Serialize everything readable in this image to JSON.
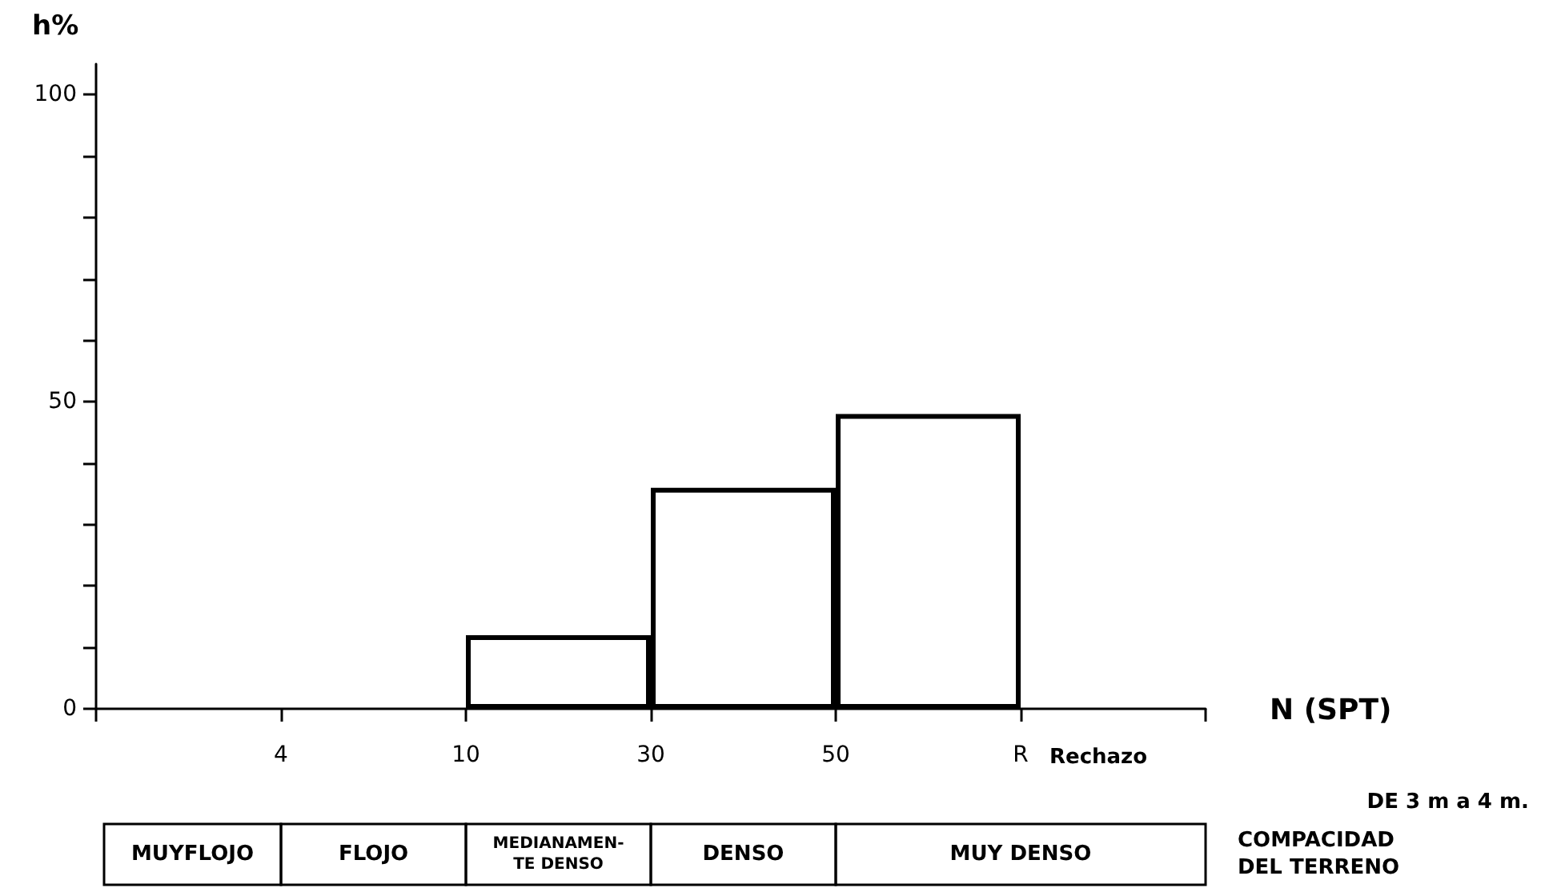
{
  "chart_data": {
    "type": "bar",
    "xlabel": "N (SPT)",
    "ylabel": "h%",
    "categories": [
      null,
      null,
      null,
      null,
      null,
      null
    ],
    "values": [
      null,
      null,
      12,
      36,
      48,
      null
    ],
    "color": "#000000",
    "ylim": [
      0,
      105
    ],
    "yticks": [
      0,
      {
        "value": 10,
        "label": null
      },
      {
        "value": 20,
        "label": null
      },
      {
        "value": 30,
        "label": null
      },
      {
        "value": 40,
        "label": null
      },
      50,
      {
        "value": 60,
        "label": null
      },
      {
        "value": 70,
        "label": null
      },
      {
        "value": 80,
        "label": null
      },
      {
        "value": 90,
        "label": null
      },
      100
    ],
    "grid": false,
    "annotations": [
      "4",
      "10",
      "30",
      "50",
      "R",
      "Rechazo",
      "DE 3 m a 4 m.",
      "MUYFLOJO",
      "FLOJO",
      "MEDIANAMEN-\nTE DENSO",
      "DENSO",
      "MUY DENSO",
      "COMPACIDAD\nDEL TERRENO"
    ]
  }
}
